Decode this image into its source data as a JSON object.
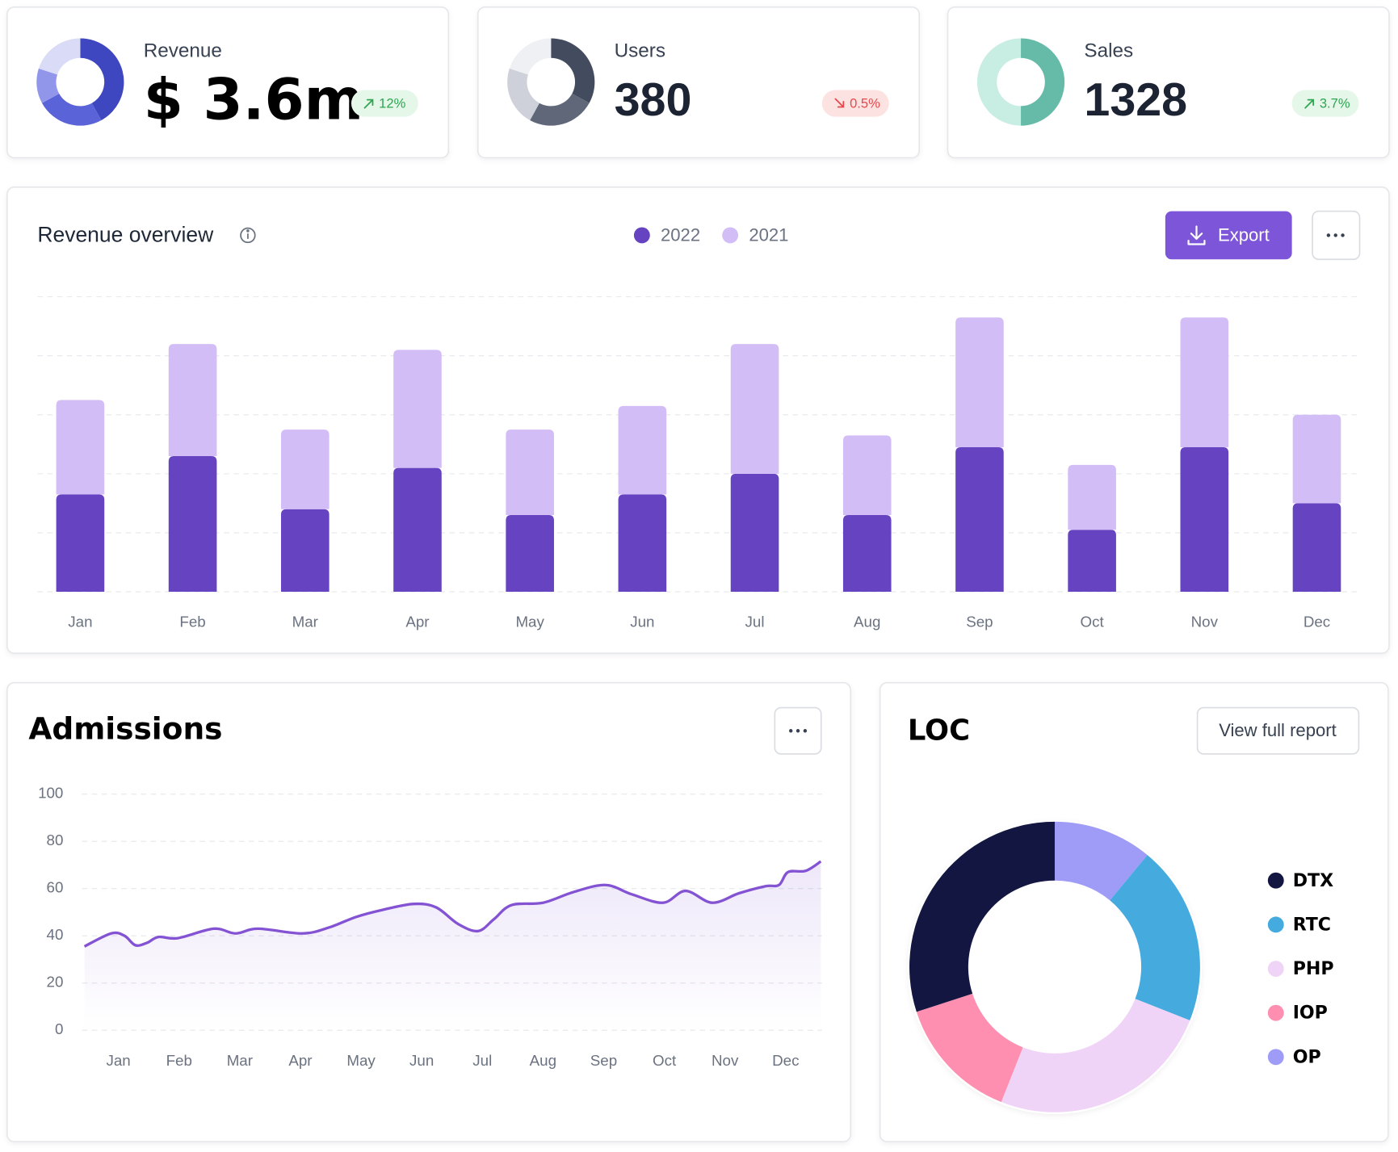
{
  "cards": [
    {
      "label": "Revenue",
      "value": "$ 3.6m",
      "change": "12%",
      "trend": "up",
      "donut": {
        "values": [
          42,
          25,
          13,
          20
        ],
        "colors": [
          "#3f47c0",
          "#5a63d8",
          "#9196ea",
          "#d9dbf7"
        ]
      }
    },
    {
      "label": "Users",
      "value": "380",
      "change": "0.5%",
      "trend": "down",
      "donut": {
        "values": [
          33,
          25,
          22,
          20
        ],
        "colors": [
          "#434c5e",
          "#5f6778",
          "#ced1d9",
          "#eef0f3"
        ]
      }
    },
    {
      "label": "Sales",
      "value": "1328",
      "change": "3.7%",
      "trend": "up",
      "donut": {
        "values": [
          50,
          50
        ],
        "colors": [
          "#66bba8",
          "#c8ede3"
        ]
      }
    }
  ],
  "chart_data": [
    {
      "type": "bar",
      "stacked": true,
      "title": "Revenue overview",
      "button": "Export",
      "categories": [
        "Jan",
        "Feb",
        "Mar",
        "Apr",
        "May",
        "Jun",
        "Jul",
        "Aug",
        "Sep",
        "Oct",
        "Nov",
        "Dec"
      ],
      "series": [
        {
          "name": "2022",
          "color": "#6644c1",
          "values": [
            33,
            46,
            28,
            42,
            26,
            33,
            40,
            26,
            49,
            21,
            49,
            30
          ]
        },
        {
          "name": "2021",
          "color": "#d3bdf6",
          "values": [
            32,
            38,
            27,
            40,
            29,
            30,
            44,
            27,
            44,
            22,
            44,
            30
          ]
        }
      ],
      "ylim": [
        0,
        100
      ],
      "yticks": [
        0,
        20,
        40,
        60,
        80,
        100
      ],
      "grid": true,
      "tick_labels": false,
      "legend": "top"
    },
    {
      "type": "line",
      "title": "Admissions",
      "color": "#8353d3",
      "x": [
        0.44,
        0.88,
        1.1,
        1.28,
        1.47,
        1.66,
        1.98,
        2.57,
        2.93,
        3.3,
        4.03,
        4.47,
        4.92,
        5.36,
        5.87,
        6.24,
        6.6,
        6.93,
        7.19,
        7.48,
        8.0,
        8.5,
        9.03,
        9.47,
        9.98,
        10.35,
        10.79,
        11.23,
        11.67,
        11.89,
        12.04,
        12.33,
        12.58
      ],
      "values": [
        35.5,
        41,
        40,
        36,
        37,
        39.5,
        39,
        43,
        41,
        43,
        41,
        43.5,
        48,
        51,
        53.5,
        52,
        45,
        42,
        47,
        53,
        54,
        58.5,
        61.5,
        57.5,
        54,
        59,
        54,
        58,
        61,
        61.5,
        67,
        67.5,
        71.5
      ],
      "xlim": [
        0.4,
        12.6
      ],
      "xticks": [
        {
          "value": 1,
          "label": "Jan"
        },
        {
          "value": 2,
          "label": "Feb"
        },
        {
          "value": 3,
          "label": "Mar"
        },
        {
          "value": 4,
          "label": "Apr"
        },
        {
          "value": 5,
          "label": "May"
        },
        {
          "value": 6,
          "label": "Jun"
        },
        {
          "value": 7,
          "label": "Jul"
        },
        {
          "value": 8,
          "label": "Aug"
        },
        {
          "value": 9,
          "label": "Sep"
        },
        {
          "value": 10,
          "label": "Oct"
        },
        {
          "value": 11,
          "label": "Nov"
        },
        {
          "value": 12,
          "label": "Dec"
        }
      ],
      "ylim": [
        0,
        100
      ],
      "yticks": [
        0,
        20,
        40,
        60,
        80,
        100
      ],
      "grid": true
    },
    {
      "type": "donut",
      "title": "LOC",
      "button": "View full report",
      "categories": [
        "OP",
        "RTC",
        "PHP",
        "IOP",
        "DTX"
      ],
      "values": [
        11,
        20,
        25,
        14,
        30
      ],
      "colors": [
        "#9f9cf8",
        "#45abdf",
        "#f0d4f7",
        "#ff8fb1",
        "#131640"
      ],
      "legend_order": [
        4,
        1,
        2,
        3,
        0
      ],
      "legend": "right"
    }
  ]
}
